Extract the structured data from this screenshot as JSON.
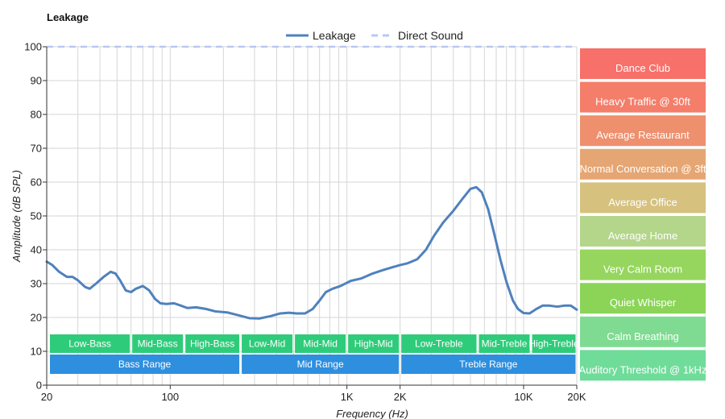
{
  "chart_data": {
    "type": "line",
    "title": "Leakage",
    "xlabel": "Frequency (Hz)",
    "ylabel": "Amplitude (dB SPL)",
    "x_scale": "log",
    "xlim": [
      20,
      20000
    ],
    "ylim": [
      0,
      100
    ],
    "y_ticks": [
      0,
      10,
      20,
      30,
      40,
      50,
      60,
      70,
      80,
      90,
      100
    ],
    "x_ticks": [
      {
        "value": 20,
        "label": "20"
      },
      {
        "value": 100,
        "label": "100"
      },
      {
        "value": 1000,
        "label": "1K"
      },
      {
        "value": 2000,
        "label": "2K"
      },
      {
        "value": 10000,
        "label": "10K"
      },
      {
        "value": 20000,
        "label": "20K"
      }
    ],
    "grid": true,
    "legend_position": "top-center",
    "series": [
      {
        "name": "Leakage",
        "color": "#4f81bd",
        "style": "solid",
        "points": [
          [
            20,
            36.5
          ],
          [
            21.5,
            35.5
          ],
          [
            23.5,
            33.5
          ],
          [
            26,
            32
          ],
          [
            28,
            32
          ],
          [
            30,
            31
          ],
          [
            33,
            29
          ],
          [
            35,
            28.5
          ],
          [
            38,
            30
          ],
          [
            42,
            32
          ],
          [
            46,
            33.5
          ],
          [
            49,
            33
          ],
          [
            52,
            31
          ],
          [
            56,
            28
          ],
          [
            60,
            27.5
          ],
          [
            64,
            28.5
          ],
          [
            70,
            29.3
          ],
          [
            76,
            28
          ],
          [
            82,
            25.5
          ],
          [
            88,
            24.2
          ],
          [
            95,
            24
          ],
          [
            105,
            24.2
          ],
          [
            115,
            23.5
          ],
          [
            125,
            22.8
          ],
          [
            140,
            23
          ],
          [
            160,
            22.5
          ],
          [
            180,
            21.8
          ],
          [
            210,
            21.5
          ],
          [
            250,
            20.5
          ],
          [
            280,
            19.8
          ],
          [
            320,
            19.7
          ],
          [
            370,
            20.4
          ],
          [
            420,
            21.2
          ],
          [
            470,
            21.4
          ],
          [
            520,
            21.2
          ],
          [
            580,
            21.2
          ],
          [
            640,
            22.5
          ],
          [
            700,
            25
          ],
          [
            760,
            27.5
          ],
          [
            830,
            28.5
          ],
          [
            920,
            29.3
          ],
          [
            1050,
            30.8
          ],
          [
            1200,
            31.5
          ],
          [
            1400,
            33
          ],
          [
            1600,
            34
          ],
          [
            1800,
            34.8
          ],
          [
            2000,
            35.5
          ],
          [
            2200,
            36
          ],
          [
            2500,
            37.2
          ],
          [
            2800,
            40
          ],
          [
            3100,
            44
          ],
          [
            3500,
            48
          ],
          [
            4000,
            51.5
          ],
          [
            4500,
            55
          ],
          [
            5000,
            58
          ],
          [
            5400,
            58.5
          ],
          [
            5800,
            57
          ],
          [
            6300,
            52
          ],
          [
            6800,
            45
          ],
          [
            7400,
            37
          ],
          [
            8000,
            30.5
          ],
          [
            8700,
            25
          ],
          [
            9300,
            22.5
          ],
          [
            10000,
            21.3
          ],
          [
            10800,
            21.2
          ],
          [
            11800,
            22.5
          ],
          [
            12800,
            23.5
          ],
          [
            14000,
            23.5
          ],
          [
            15500,
            23.2
          ],
          [
            17000,
            23.5
          ],
          [
            18500,
            23.5
          ],
          [
            20000,
            22.3
          ]
        ]
      },
      {
        "name": "Direct Sound",
        "color": "#b7c8f5",
        "style": "dashed",
        "points": [
          [
            20,
            100
          ],
          [
            20000,
            100
          ]
        ]
      }
    ],
    "bands": [
      {
        "label": "Low-Bass",
        "row": 1,
        "from": 20,
        "to": 60
      },
      {
        "label": "Mid-Bass",
        "row": 1,
        "from": 60,
        "to": 120
      },
      {
        "label": "High-Bass",
        "row": 1,
        "from": 120,
        "to": 250
      },
      {
        "label": "Low-Mid",
        "row": 1,
        "from": 250,
        "to": 500
      },
      {
        "label": "Mid-Mid",
        "row": 1,
        "from": 500,
        "to": 1000
      },
      {
        "label": "High-Mid",
        "row": 1,
        "from": 1000,
        "to": 2000
      },
      {
        "label": "Low-Treble",
        "row": 1,
        "from": 2000,
        "to": 5500
      },
      {
        "label": "Mid-Treble",
        "row": 1,
        "from": 5500,
        "to": 11000
      },
      {
        "label": "High-Treble",
        "row": 1,
        "from": 11000,
        "to": 20000
      },
      {
        "label": "Bass Range",
        "row": 2,
        "from": 20,
        "to": 250
      },
      {
        "label": "Mid Range",
        "row": 2,
        "from": 250,
        "to": 2000
      },
      {
        "label": "Treble Range",
        "row": 2,
        "from": 2000,
        "to": 20000
      }
    ],
    "band_colors": {
      "row1": "#2ecc7a",
      "row2": "#2e8fdf"
    },
    "reference_levels": [
      {
        "label": "Dance Club",
        "color": "#f7706a"
      },
      {
        "label": "Heavy Traffic @ 30ft",
        "color": "#f47e6a"
      },
      {
        "label": "Average Restaurant",
        "color": "#ee8f6e"
      },
      {
        "label": "Normal Conversation @ 3ft",
        "color": "#e5a674"
      },
      {
        "label": "Average Office",
        "color": "#d6c17e"
      },
      {
        "label": "Average Home",
        "color": "#b3d68a"
      },
      {
        "label": "Very Calm Room",
        "color": "#96d65e"
      },
      {
        "label": "Quiet Whisper",
        "color": "#8bd458"
      },
      {
        "label": "Calm Breathing",
        "color": "#7fdb92"
      },
      {
        "label": "Auditory Threshold @ 1kHz",
        "color": "#6fdc9a"
      }
    ]
  }
}
